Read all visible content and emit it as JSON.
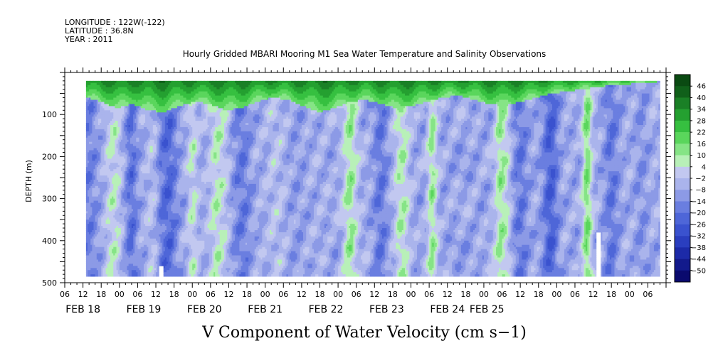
{
  "header": {
    "longitude": "LONGITUDE : 122W(-122)",
    "latitude": "LATITUDE : 36.8N",
    "year": "YEAR : 2011"
  },
  "chart_data": {
    "type": "heatmap",
    "title": "Hourly Gridded MBARI Mooring M1 Sea Water Temperature and Salinity Observations",
    "xlabel": "V Component of Water Velocity (cm s−1)",
    "ylabel": "DEPTH (m)",
    "y_axis": {
      "range": [
        0,
        500
      ],
      "inverted": true,
      "tick_labels": [
        "100",
        "200",
        "300",
        "400",
        "500"
      ],
      "tick_values": [
        100,
        200,
        300,
        400,
        500
      ]
    },
    "x_axis": {
      "hour_tick_labels": [
        "06",
        "12",
        "18",
        "00",
        "06",
        "12",
        "18",
        "00",
        "06",
        "12",
        "18",
        "00",
        "06",
        "12",
        "18",
        "00",
        "06",
        "12",
        "18",
        "00",
        "06",
        "12",
        "18",
        "00",
        "06",
        "12",
        "18",
        "00",
        "06",
        "12",
        "18",
        "00",
        "06"
      ],
      "hour_tick_hours": [
        6,
        12,
        18,
        24,
        30,
        36,
        42,
        48,
        54,
        60,
        66,
        72,
        78,
        84,
        90,
        96,
        102,
        108,
        114,
        120,
        126,
        132,
        138,
        144,
        150,
        156,
        162,
        168,
        174,
        180,
        186,
        192,
        198
      ],
      "date_labels": [
        "FEB 18",
        "FEB 19",
        "FEB 20",
        "FEB 21",
        "FEB 22",
        "FEB 23",
        "FEB 24",
        "FEB 25"
      ],
      "date_label_hours": [
        12,
        32,
        52,
        72,
        92,
        112,
        132,
        145
      ],
      "range_hours": [
        6,
        204
      ]
    },
    "data_extent": {
      "start_hour": 13,
      "end_hour": 202,
      "min_depth": 20,
      "max_depth": 485
    },
    "mixed_layer_depth": [
      60,
      70,
      85,
      75,
      90,
      95,
      80,
      70,
      75,
      90,
      85,
      70,
      60,
      65,
      80,
      95,
      85,
      70,
      65,
      75,
      85,
      80,
      70,
      60,
      55,
      65,
      75,
      80,
      70,
      60,
      50,
      45,
      40,
      35,
      30,
      28,
      25,
      22
    ],
    "vertical_bands": [
      {
        "hour": 14,
        "value": -16,
        "width": 5
      },
      {
        "hour": 22,
        "value": 6,
        "width": 3
      },
      {
        "hour": 28,
        "value": -20,
        "width": 3
      },
      {
        "hour": 35,
        "value": 4,
        "width": 2
      },
      {
        "hour": 40,
        "value": -22,
        "width": 5
      },
      {
        "hour": 48,
        "value": 5,
        "width": 2
      },
      {
        "hour": 57,
        "value": 8,
        "width": 4
      },
      {
        "hour": 64,
        "value": -18,
        "width": 5
      },
      {
        "hour": 76,
        "value": 2,
        "width": 3
      },
      {
        "hour": 82,
        "value": -10,
        "width": 8
      },
      {
        "hour": 100,
        "value": 10,
        "width": 3
      },
      {
        "hour": 110,
        "value": -18,
        "width": 4
      },
      {
        "hour": 117,
        "value": 8,
        "width": 3
      },
      {
        "hour": 127,
        "value": 10,
        "width": 2
      },
      {
        "hour": 150,
        "value": 12,
        "width": 3
      },
      {
        "hour": 156,
        "value": -18,
        "width": 4
      },
      {
        "hour": 166,
        "value": -24,
        "width": 4
      },
      {
        "hour": 178,
        "value": 14,
        "width": 2
      },
      {
        "hour": 186,
        "value": -18,
        "width": 4
      },
      {
        "hour": 196,
        "value": -12,
        "width": 4
      }
    ],
    "missing_data": [
      {
        "start_hour": 37,
        "end_hour": 38,
        "top_depth": 460,
        "bottom_depth": 485
      },
      {
        "start_hour": 181,
        "end_hour": 182,
        "top_depth": 380,
        "bottom_depth": 485
      }
    ],
    "colorbar": {
      "levels": [
        -50,
        -44,
        -38,
        -32,
        -26,
        -20,
        -14,
        -8,
        -2,
        4,
        10,
        16,
        22,
        28,
        34,
        40,
        46
      ],
      "labels": [
        "46",
        "40",
        "34",
        "28",
        "22",
        "16",
        "10",
        "4",
        "−2",
        "−8",
        "−14",
        "−20",
        "−26",
        "−32",
        "−38",
        "−44",
        "−50"
      ],
      "colors": [
        "#0a0a6e",
        "#121a8c",
        "#1c2aa8",
        "#2a3ebf",
        "#3a52cf",
        "#4e66d8",
        "#6a7ee0",
        "#8c9ae6",
        "#aab4ec",
        "#c2c8f0",
        "#b8f0b8",
        "#86e486",
        "#5ad65c",
        "#36c040",
        "#24a030",
        "#1a8026",
        "#10601a",
        "#0a4a12"
      ]
    }
  }
}
